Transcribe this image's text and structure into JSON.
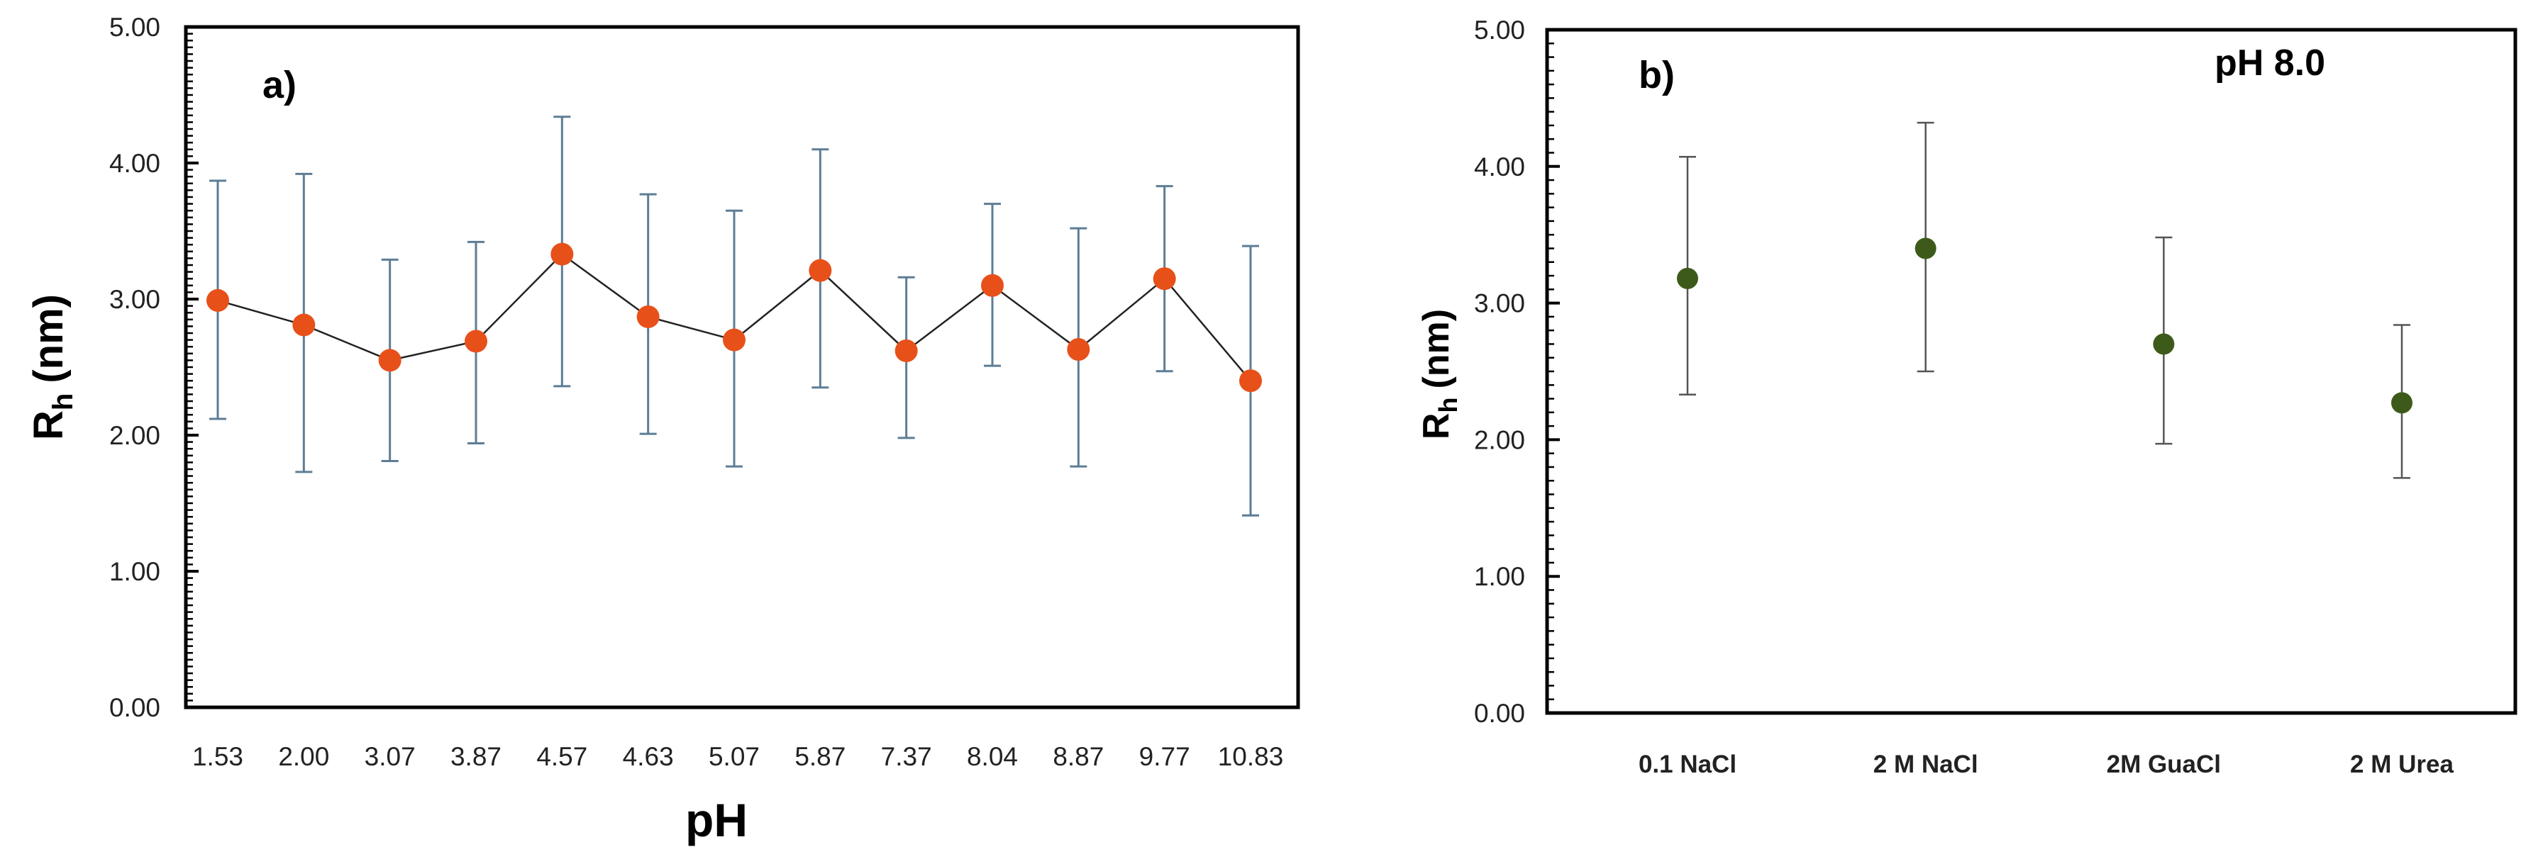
{
  "chart_data": [
    {
      "type": "line",
      "panel_label": "a)",
      "title": "",
      "xlabel": "pH",
      "ylabel_main": "R",
      "ylabel_sub": "h",
      "ylabel_unit": "(nm)",
      "categories": [
        "1.53",
        "2.00",
        "3.07",
        "3.87",
        "4.57",
        "4.63",
        "5.07",
        "5.87",
        "7.37",
        "8.04",
        "8.87",
        "9.77",
        "10.83"
      ],
      "series": [
        {
          "name": "Rh",
          "values": [
            2.99,
            2.81,
            2.55,
            2.69,
            3.33,
            2.87,
            2.7,
            3.21,
            2.62,
            3.1,
            2.63,
            3.15,
            2.4
          ],
          "error_upper": [
            3.87,
            3.92,
            3.29,
            3.42,
            4.34,
            3.77,
            3.65,
            4.1,
            3.16,
            3.7,
            3.52,
            3.83,
            3.39
          ],
          "error_lower": [
            2.12,
            1.73,
            1.81,
            1.94,
            2.36,
            2.01,
            1.77,
            2.35,
            1.98,
            2.51,
            1.77,
            2.47,
            1.41
          ],
          "marker_color": "#e8501a",
          "line_color": "#222222",
          "errorbar_color": "#5d7d95"
        }
      ],
      "ylim": [
        0,
        5
      ],
      "yticks": [
        "0.00",
        "1.00",
        "2.00",
        "3.00",
        "4.00",
        "5.00"
      ],
      "grid": false
    },
    {
      "type": "scatter",
      "panel_label": "b)",
      "annotation": "pH 8.0",
      "xlabel": "",
      "ylabel_main": "R",
      "ylabel_sub": "h",
      "ylabel_unit": "(nm)",
      "categories": [
        "0.1 NaCl",
        "2 M NaCl",
        "2M GuaCl",
        "2 M Urea"
      ],
      "series": [
        {
          "name": "Rh",
          "values": [
            3.18,
            3.4,
            2.7,
            2.27
          ],
          "error_upper": [
            4.07,
            4.32,
            3.48,
            2.84
          ],
          "error_lower": [
            2.33,
            2.5,
            1.97,
            1.72
          ],
          "marker_color": "#3d5a1a",
          "errorbar_color": "#555555"
        }
      ],
      "ylim": [
        0,
        5
      ],
      "yticks": [
        "0.00",
        "1.00",
        "2.00",
        "3.00",
        "4.00",
        "5.00"
      ],
      "grid": false
    }
  ]
}
